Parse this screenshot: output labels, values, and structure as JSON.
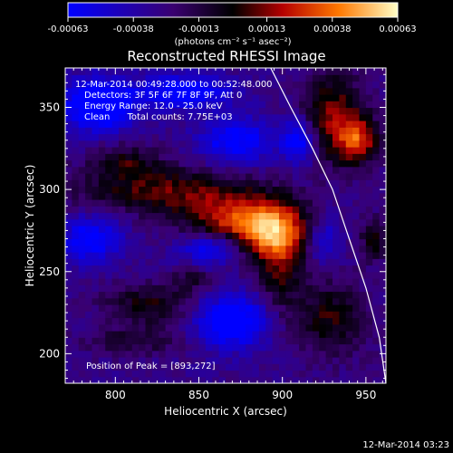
{
  "chart_data": {
    "type": "heatmap",
    "title": "Reconstructed RHESSI Image",
    "xlabel": "Heliocentric X (arcsec)",
    "ylabel": "Heliocentric Y (arcsec)",
    "xlim": [
      770,
      962
    ],
    "ylim": [
      182,
      374
    ],
    "x_ticks": [
      800,
      850,
      900,
      950
    ],
    "y_ticks": [
      200,
      250,
      300,
      350
    ],
    "colorbar": {
      "ticks": [
        "-0.00063",
        "-0.00038",
        "-0.00013",
        "0.00013",
        "0.00038",
        "0.00063"
      ],
      "range": [
        -0.00063,
        0.00063
      ],
      "units": "(photons cm⁻² s⁻¹ asec⁻²)"
    },
    "annotations": [
      "12-Mar-2014 00:49:28.000 to 00:52:48.000",
      "Detectors: 3F 5F 6F 7F 8F 9F, Att 0",
      "Energy Range: 12.0 - 25.0 keV",
      "Clean      Total counts: 7.75E+03"
    ],
    "peak_label": "Position of Peak = [893,272]",
    "peak": [
      893,
      272
    ],
    "timestamp": "12-Mar-2014 03:23",
    "limb": [
      [
        893,
        374
      ],
      [
        905,
        350
      ],
      [
        918,
        325
      ],
      [
        930,
        300
      ],
      [
        940,
        270
      ],
      [
        950,
        240
      ],
      [
        958,
        210
      ],
      [
        962,
        182
      ]
    ],
    "blobs": [
      {
        "x": 895,
        "y": 274,
        "rx": 22,
        "ry": 18,
        "v": 0.00063
      },
      {
        "x": 870,
        "y": 282,
        "rx": 30,
        "ry": 16,
        "v": 0.00045
      },
      {
        "x": 930,
        "y": 345,
        "rx": 18,
        "ry": 26,
        "v": 0.0004
      },
      {
        "x": 945,
        "y": 330,
        "rx": 12,
        "ry": 14,
        "v": 0.0005
      },
      {
        "x": 828,
        "y": 300,
        "rx": 50,
        "ry": 14,
        "v": 0.00035
      },
      {
        "x": 806,
        "y": 318,
        "rx": 20,
        "ry": 10,
        "v": 0.00025
      },
      {
        "x": 820,
        "y": 230,
        "rx": 26,
        "ry": 12,
        "v": 0.00028
      },
      {
        "x": 812,
        "y": 208,
        "rx": 30,
        "ry": 8,
        "v": 0.0002
      },
      {
        "x": 928,
        "y": 222,
        "rx": 22,
        "ry": 22,
        "v": 0.0003
      },
      {
        "x": 898,
        "y": 248,
        "rx": 12,
        "ry": 24,
        "v": 0.00025
      },
      {
        "x": 845,
        "y": 245,
        "rx": 12,
        "ry": 8,
        "v": 0.0002
      },
      {
        "x": 955,
        "y": 270,
        "rx": 8,
        "ry": 12,
        "v": 0.0003
      },
      {
        "x": 790,
        "y": 352,
        "rx": 22,
        "ry": 16,
        "v": -0.00055
      },
      {
        "x": 842,
        "y": 360,
        "rx": 26,
        "ry": 10,
        "v": -0.00045
      },
      {
        "x": 872,
        "y": 330,
        "rx": 22,
        "ry": 14,
        "v": -0.0004
      },
      {
        "x": 858,
        "y": 265,
        "rx": 20,
        "ry": 10,
        "v": -0.0004
      },
      {
        "x": 785,
        "y": 270,
        "rx": 18,
        "ry": 14,
        "v": -0.0004
      },
      {
        "x": 870,
        "y": 220,
        "rx": 22,
        "ry": 16,
        "v": -0.0005
      },
      {
        "x": 925,
        "y": 270,
        "rx": 10,
        "ry": 14,
        "v": -0.0003
      },
      {
        "x": 910,
        "y": 330,
        "rx": 10,
        "ry": 14,
        "v": -0.0004
      }
    ]
  }
}
